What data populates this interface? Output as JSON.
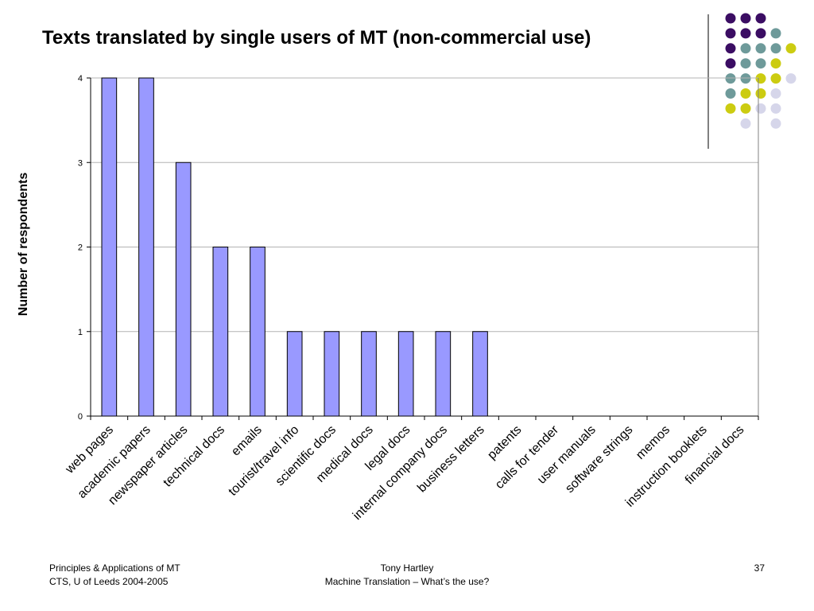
{
  "slide": {
    "title": "Texts translated by single users of MT (non-commercial use)"
  },
  "footer": {
    "left_line1": "Principles & Applications of MT",
    "left_line2": "CTS, U of Leeds 2004-2005",
    "center_line1": "Tony Hartley",
    "center_line2": "Machine Translation – What’s the use?",
    "page_number": "37"
  },
  "decoration": {
    "dot_colors": {
      "purple": "#3b0d63",
      "teal": "#6e9a9a",
      "yellow": "#cccc11",
      "lavender": "#d6d6ea"
    },
    "rule_color": "#000000"
  },
  "chart_data": {
    "type": "bar",
    "title": "",
    "xlabel": "",
    "ylabel": "Number of respondents",
    "ylim": [
      0,
      4
    ],
    "yticks": [
      0,
      1,
      2,
      3,
      4
    ],
    "grid": true,
    "legend": "none",
    "bar_color": "#9999ff",
    "bar_edge_color": "#000000",
    "categories": [
      "web pages",
      "academic papers",
      "newspaper articles",
      "technical docs",
      "emails",
      "tourist/travel info",
      "scientific docs",
      "medical docs",
      "legal docs",
      "internal company docs",
      "business letters",
      "patents",
      "calls for tender",
      "user manuals",
      "software strings",
      "memos",
      "instruction booklets",
      "financial docs"
    ],
    "values": [
      4,
      4,
      3,
      2,
      2,
      1,
      1,
      1,
      1,
      1,
      1,
      0,
      0,
      0,
      0,
      0,
      0,
      0
    ]
  }
}
